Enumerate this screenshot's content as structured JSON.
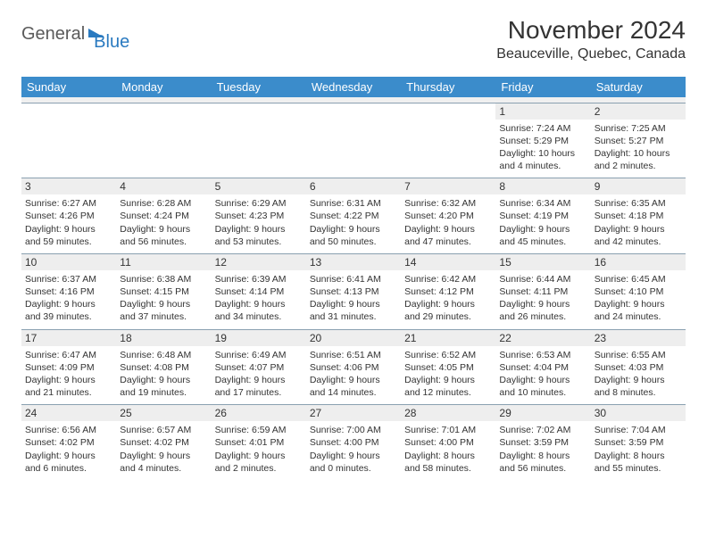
{
  "logo": {
    "word1": "General",
    "word2": "Blue"
  },
  "title": "November 2024",
  "location": "Beauceville, Quebec, Canada",
  "colors": {
    "header_bg": "#3b8ccb",
    "header_text": "#ffffff",
    "daynum_bg": "#eeeeee",
    "border": "#8aa0b0",
    "text": "#333333",
    "logo_gray": "#5a5a5a",
    "logo_blue": "#2a7ac0"
  },
  "day_headers": [
    "Sunday",
    "Monday",
    "Tuesday",
    "Wednesday",
    "Thursday",
    "Friday",
    "Saturday"
  ],
  "weeks": [
    [
      null,
      null,
      null,
      null,
      null,
      {
        "n": "1",
        "sr": "Sunrise: 7:24 AM",
        "ss": "Sunset: 5:29 PM",
        "dl": "Daylight: 10 hours and 4 minutes."
      },
      {
        "n": "2",
        "sr": "Sunrise: 7:25 AM",
        "ss": "Sunset: 5:27 PM",
        "dl": "Daylight: 10 hours and 2 minutes."
      }
    ],
    [
      {
        "n": "3",
        "sr": "Sunrise: 6:27 AM",
        "ss": "Sunset: 4:26 PM",
        "dl": "Daylight: 9 hours and 59 minutes."
      },
      {
        "n": "4",
        "sr": "Sunrise: 6:28 AM",
        "ss": "Sunset: 4:24 PM",
        "dl": "Daylight: 9 hours and 56 minutes."
      },
      {
        "n": "5",
        "sr": "Sunrise: 6:29 AM",
        "ss": "Sunset: 4:23 PM",
        "dl": "Daylight: 9 hours and 53 minutes."
      },
      {
        "n": "6",
        "sr": "Sunrise: 6:31 AM",
        "ss": "Sunset: 4:22 PM",
        "dl": "Daylight: 9 hours and 50 minutes."
      },
      {
        "n": "7",
        "sr": "Sunrise: 6:32 AM",
        "ss": "Sunset: 4:20 PM",
        "dl": "Daylight: 9 hours and 47 minutes."
      },
      {
        "n": "8",
        "sr": "Sunrise: 6:34 AM",
        "ss": "Sunset: 4:19 PM",
        "dl": "Daylight: 9 hours and 45 minutes."
      },
      {
        "n": "9",
        "sr": "Sunrise: 6:35 AM",
        "ss": "Sunset: 4:18 PM",
        "dl": "Daylight: 9 hours and 42 minutes."
      }
    ],
    [
      {
        "n": "10",
        "sr": "Sunrise: 6:37 AM",
        "ss": "Sunset: 4:16 PM",
        "dl": "Daylight: 9 hours and 39 minutes."
      },
      {
        "n": "11",
        "sr": "Sunrise: 6:38 AM",
        "ss": "Sunset: 4:15 PM",
        "dl": "Daylight: 9 hours and 37 minutes."
      },
      {
        "n": "12",
        "sr": "Sunrise: 6:39 AM",
        "ss": "Sunset: 4:14 PM",
        "dl": "Daylight: 9 hours and 34 minutes."
      },
      {
        "n": "13",
        "sr": "Sunrise: 6:41 AM",
        "ss": "Sunset: 4:13 PM",
        "dl": "Daylight: 9 hours and 31 minutes."
      },
      {
        "n": "14",
        "sr": "Sunrise: 6:42 AM",
        "ss": "Sunset: 4:12 PM",
        "dl": "Daylight: 9 hours and 29 minutes."
      },
      {
        "n": "15",
        "sr": "Sunrise: 6:44 AM",
        "ss": "Sunset: 4:11 PM",
        "dl": "Daylight: 9 hours and 26 minutes."
      },
      {
        "n": "16",
        "sr": "Sunrise: 6:45 AM",
        "ss": "Sunset: 4:10 PM",
        "dl": "Daylight: 9 hours and 24 minutes."
      }
    ],
    [
      {
        "n": "17",
        "sr": "Sunrise: 6:47 AM",
        "ss": "Sunset: 4:09 PM",
        "dl": "Daylight: 9 hours and 21 minutes."
      },
      {
        "n": "18",
        "sr": "Sunrise: 6:48 AM",
        "ss": "Sunset: 4:08 PM",
        "dl": "Daylight: 9 hours and 19 minutes."
      },
      {
        "n": "19",
        "sr": "Sunrise: 6:49 AM",
        "ss": "Sunset: 4:07 PM",
        "dl": "Daylight: 9 hours and 17 minutes."
      },
      {
        "n": "20",
        "sr": "Sunrise: 6:51 AM",
        "ss": "Sunset: 4:06 PM",
        "dl": "Daylight: 9 hours and 14 minutes."
      },
      {
        "n": "21",
        "sr": "Sunrise: 6:52 AM",
        "ss": "Sunset: 4:05 PM",
        "dl": "Daylight: 9 hours and 12 minutes."
      },
      {
        "n": "22",
        "sr": "Sunrise: 6:53 AM",
        "ss": "Sunset: 4:04 PM",
        "dl": "Daylight: 9 hours and 10 minutes."
      },
      {
        "n": "23",
        "sr": "Sunrise: 6:55 AM",
        "ss": "Sunset: 4:03 PM",
        "dl": "Daylight: 9 hours and 8 minutes."
      }
    ],
    [
      {
        "n": "24",
        "sr": "Sunrise: 6:56 AM",
        "ss": "Sunset: 4:02 PM",
        "dl": "Daylight: 9 hours and 6 minutes."
      },
      {
        "n": "25",
        "sr": "Sunrise: 6:57 AM",
        "ss": "Sunset: 4:02 PM",
        "dl": "Daylight: 9 hours and 4 minutes."
      },
      {
        "n": "26",
        "sr": "Sunrise: 6:59 AM",
        "ss": "Sunset: 4:01 PM",
        "dl": "Daylight: 9 hours and 2 minutes."
      },
      {
        "n": "27",
        "sr": "Sunrise: 7:00 AM",
        "ss": "Sunset: 4:00 PM",
        "dl": "Daylight: 9 hours and 0 minutes."
      },
      {
        "n": "28",
        "sr": "Sunrise: 7:01 AM",
        "ss": "Sunset: 4:00 PM",
        "dl": "Daylight: 8 hours and 58 minutes."
      },
      {
        "n": "29",
        "sr": "Sunrise: 7:02 AM",
        "ss": "Sunset: 3:59 PM",
        "dl": "Daylight: 8 hours and 56 minutes."
      },
      {
        "n": "30",
        "sr": "Sunrise: 7:04 AM",
        "ss": "Sunset: 3:59 PM",
        "dl": "Daylight: 8 hours and 55 minutes."
      }
    ]
  ]
}
